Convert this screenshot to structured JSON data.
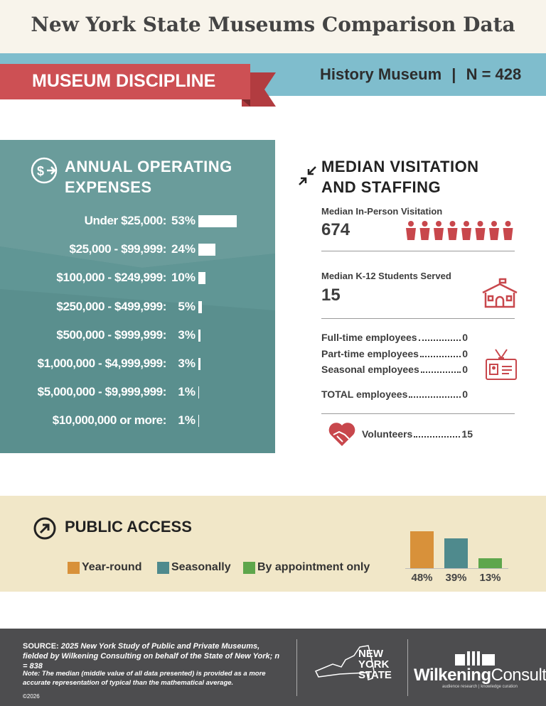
{
  "header": {
    "title": "New York State Museums Comparison Data"
  },
  "discipline": {
    "label": "MUSEUM DISCIPLINE",
    "museum": "History Museum",
    "separator": "|",
    "n_label": "N = 428"
  },
  "expenses": {
    "title_line1": "ANNUAL OPERATING",
    "title_line2": "EXPENSES",
    "rows": [
      {
        "label": "Under $25,000:",
        "value": 53,
        "value_label": "53%"
      },
      {
        "label": "$25,000 - $99,999:",
        "value": 24,
        "value_label": "24%"
      },
      {
        "label": "$100,000 - $249,999:",
        "value": 10,
        "value_label": "10%"
      },
      {
        "label": "$250,000 - $499,999:",
        "value": 5,
        "value_label": "5%"
      },
      {
        "label": "$500,000 - $999,999:",
        "value": 3,
        "value_label": "3%"
      },
      {
        "label": "$1,000,000 - $4,999,999:",
        "value": 3,
        "value_label": "3%"
      },
      {
        "label": "$5,000,000 - $9,999,999:",
        "value": 1,
        "value_label": "1%"
      },
      {
        "label": "$10,000,000 or more:",
        "value": 1,
        "value_label": "1%"
      }
    ]
  },
  "visitation": {
    "title_line1": "MEDIAN VISITATION",
    "title_line2": "AND STAFFING",
    "in_person_label": "Median In-Person Visitation",
    "in_person_value": 674,
    "k12_label": "Median K-12 Students Served",
    "k12_value": 15,
    "staff": [
      {
        "label": "Full-time employees",
        "value": 0
      },
      {
        "label": "Part-time employees",
        "value": 0
      },
      {
        "label": "Seasonal employees",
        "value": 0
      }
    ],
    "total": {
      "label": "TOTAL employees",
      "value": 0
    },
    "volunteers": {
      "label": "Volunteers",
      "value": 15
    }
  },
  "public_access": {
    "title": "PUBLIC ACCESS",
    "categories": [
      "Year-round",
      "Seasonally",
      "By appointment only"
    ],
    "colors": [
      "#d8913a",
      "#4f8a8d",
      "#5ea64c"
    ],
    "values": [
      48,
      39,
      13
    ],
    "value_labels": [
      "48%",
      "39%",
      "13%"
    ]
  },
  "footer": {
    "source_label": "SOURCE:",
    "source_text": "2025 New York Study of Public and Private Museums, fielded by Wilkening Consulting on behalf of the State of New York; n = 838",
    "note": "Note: The median (middle value of all data presented) is provided as a more accurate representation of typical than the mathematical average.",
    "copyright": "©2026",
    "ny_logo": [
      "NEW",
      "YORK",
      "STATE"
    ],
    "consultant": {
      "name_part1": "Wilkening",
      "name_part2": "Consulting",
      "tagline": "audience research | knowledge curation"
    }
  }
}
